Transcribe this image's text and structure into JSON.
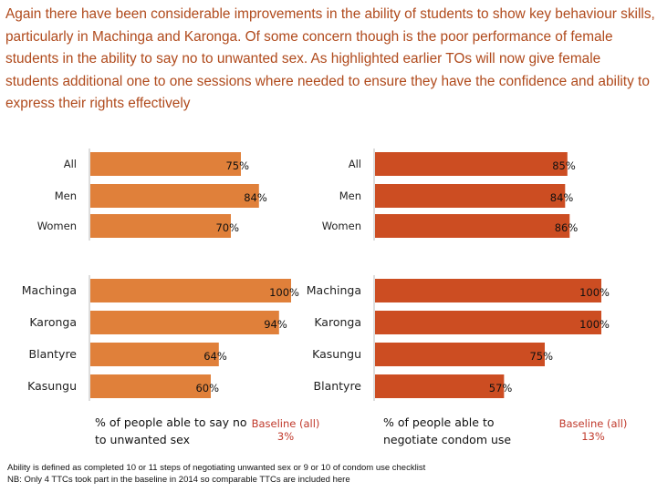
{
  "intro_text": "Again there have been considerable improvements in the ability of students to show key behaviour skills, particularly in Machinga and Karonga.  Of some concern though is the poor performance of female students in the ability to say no to unwanted sex. As highlighted earlier TOs will now give female students additional one to one sessions where needed to ensure they have the confidence and ability to express their rights effectively",
  "chart_data": [
    {
      "type": "bar",
      "orientation": "horizontal",
      "color": "#e0803a",
      "caption": "% of people able to say no to unwanted sex",
      "baseline_label": "Baseline (all)",
      "baseline_value": "3%",
      "xlim": [
        0,
        100
      ],
      "groups": [
        {
          "categories": [
            "All",
            "Men",
            "Women"
          ],
          "values": [
            75,
            84,
            70
          ],
          "labels": [
            "75%",
            "84%",
            "70%"
          ]
        },
        {
          "categories": [
            "Machinga",
            "Karonga",
            "Blantyre",
            "Kasungu"
          ],
          "values": [
            100,
            94,
            64,
            60
          ],
          "labels": [
            "100%",
            "94%",
            "64%",
            "60%"
          ]
        }
      ]
    },
    {
      "type": "bar",
      "orientation": "horizontal",
      "color": "#cc4d22",
      "caption": "% of people able to negotiate condom use",
      "baseline_label": "Baseline (all)",
      "baseline_value": "13%",
      "xlim": [
        0,
        100
      ],
      "groups": [
        {
          "categories": [
            "All",
            "Men",
            "Women"
          ],
          "values": [
            85,
            84,
            86
          ],
          "labels": [
            "85%",
            "84%",
            "86%"
          ]
        },
        {
          "categories": [
            "Machinga",
            "Karonga",
            "Kasungu",
            "Blantyre"
          ],
          "values": [
            100,
            100,
            75,
            57
          ],
          "labels": [
            "100%",
            "100%",
            "75%",
            "57%"
          ]
        }
      ]
    }
  ],
  "footnotes": [
    "Ability is defined as completed 10 or 11 steps of negotiating unwanted sex or 9 or 10 of condom use checklist",
    "NB: Only 4 TTCs took part in the baseline in 2014 so comparable TTCs are included here"
  ]
}
